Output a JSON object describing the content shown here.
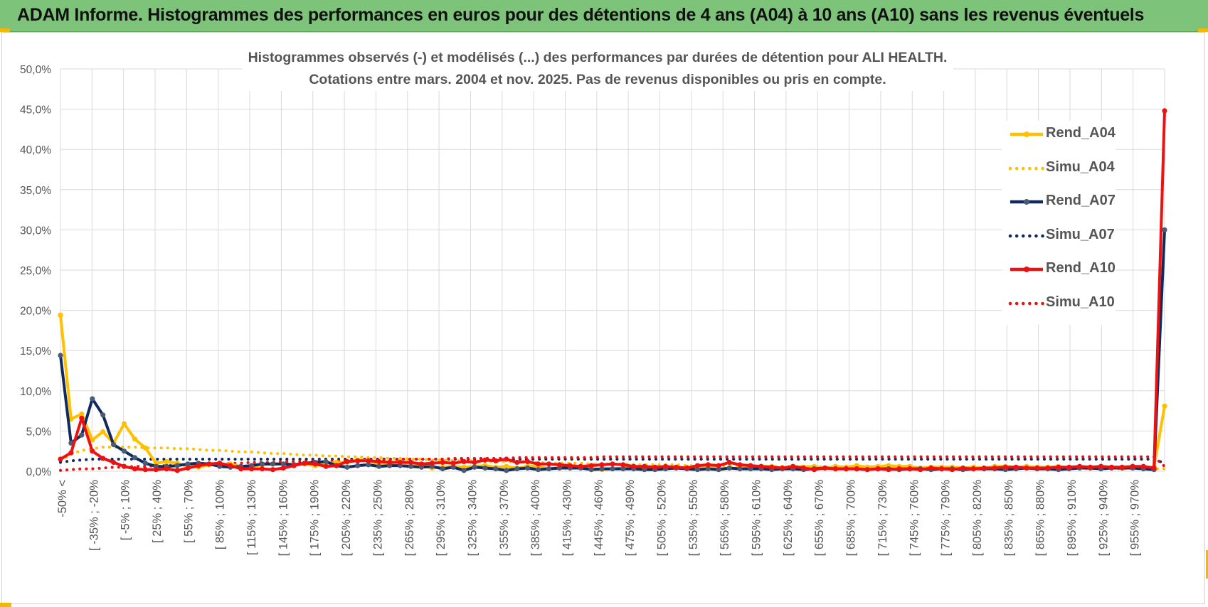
{
  "banner": {
    "title": "ADAM Informe. Histogrammes des performances en euros pour des détentions de 4 ans (A04) à 10 ans (A10) sans les revenus éventuels"
  },
  "colors": {
    "banner_bg": "#7dc47a",
    "corner_accent": "#f5b800",
    "A04": "#ffc000",
    "A07": "#0f2a5e",
    "A07_marker": "#4a5b76",
    "A10": "#ee1111",
    "grid": "#d9d9d9",
    "text": "#555555"
  },
  "chart_data": {
    "type": "line",
    "title": [
      "Histogrammes observés (-) et modélisés (...) des performances par durées de détention pour ALI HEALTH.",
      "Cotations entre mars. 2004  et nov. 2025.  Pas de revenus disponibles ou pris en compte."
    ],
    "y_ticks": [
      "0,0%",
      "5,0%",
      "10,0%",
      "15,0%",
      "20,0%",
      "25,0%",
      "30,0%",
      "35,0%",
      "40,0%",
      "45,0%",
      "50,0%"
    ],
    "ylim": [
      0,
      50
    ],
    "grid": true,
    "legend_position": "right",
    "category_count": 35,
    "category_labels": [
      "-50% <",
      "[ -35% ; -20%",
      "[ -5% ; 10%",
      "[ 25% ; 40%",
      "[ 55% ; 70%",
      "[ 85% ; 100%",
      "[ 115% ; 130%",
      "[ 145% ; 160%",
      "[ 175% ; 190%",
      "[ 205% ; 220%",
      "[ 235% ; 250%",
      "[ 265% ; 280%",
      "[ 295% ; 310%",
      "[ 325% ; 340%",
      "[ 355% ; 370%",
      "[ 385% ; 400%",
      "[ 415% ; 430%",
      "[ 445% ; 460%",
      "[ 475% ; 490%",
      "[ 505% ; 520%",
      "[ 535% ; 550%",
      "[ 565% ; 580%",
      "[ 595% ; 610%",
      "[ 625% ; 640%",
      "[ 655% ; 670%",
      "[ 685% ; 700%",
      "[ 715% ; 730%",
      "[ 745% ; 760%",
      "[ 775% ; 790%",
      "[ 805% ; 820%",
      "[ 835% ; 850%",
      "[ 865% ; 880%",
      "[ 895% ; 910%",
      "[ 925% ; 940%",
      "[ 955% ; 970%"
    ],
    "series": [
      {
        "name": "Rend_A04",
        "style": "solid",
        "color": "#ffc000",
        "markers": true,
        "values": [
          19.4,
          6.5,
          7.1,
          3.9,
          4.9,
          3.5,
          5.9,
          4.0,
          2.9,
          1.0,
          1.2,
          1.0,
          0.6,
          0.5,
          0.8,
          0.8,
          0.9,
          0.6,
          0.6,
          0.8,
          0.9,
          0.9,
          0.8,
          0.9,
          0.7,
          0.9,
          1.1,
          1.1,
          1.4,
          1.3,
          0.9,
          1.0,
          1.2,
          0.8,
          0.7,
          0.4,
          0.5,
          0.6,
          0.5,
          0.6,
          0.7,
          0.5,
          0.6,
          0.4,
          0.6,
          0.6,
          0.3,
          0.4,
          0.6,
          0.4,
          0.3,
          0.2,
          0.3,
          0.4,
          0.5,
          0.3,
          0.3,
          0.4,
          0.4,
          0.5,
          0.5,
          0.5,
          0.3,
          0.4,
          0.3,
          0.5,
          0.6,
          0.6,
          0.4,
          0.6,
          0.5,
          0.6,
          0.4,
          0.6,
          0.5,
          0.7,
          0.5,
          0.6,
          0.7,
          0.6,
          0.6,
          0.4,
          0.5,
          0.5,
          0.5,
          0.4,
          0.5,
          0.4,
          0.6,
          0.6,
          0.5,
          0.6,
          0.5,
          0.5,
          0.6,
          0.4,
          0.5,
          0.5,
          0.6,
          0.5,
          0.5,
          0.6,
          0.5,
          0.5,
          8.1
        ]
      },
      {
        "name": "Simu_A04",
        "style": "dotted",
        "color": "#ffc000",
        "markers": false,
        "values": [
          1.3,
          2.1,
          2.6,
          2.8,
          3.0,
          3.0,
          3.0,
          3.0,
          2.9,
          2.9,
          2.9,
          2.8,
          2.8,
          2.7,
          2.6,
          2.6,
          2.5,
          2.4,
          2.4,
          2.3,
          2.2,
          2.2,
          2.1,
          2.0,
          2.0,
          1.9,
          1.9,
          1.8,
          1.8,
          1.7,
          1.7,
          1.6,
          1.6,
          1.5,
          1.5,
          1.4,
          1.4,
          1.3,
          1.3,
          1.3,
          1.2,
          1.2,
          1.2,
          1.1,
          1.1,
          1.1,
          1.0,
          1.0,
          1.0,
          1.0,
          0.9,
          0.9,
          0.9,
          0.9,
          0.8,
          0.8,
          0.8,
          0.8,
          0.8,
          0.7,
          0.7,
          0.7,
          0.7,
          0.7,
          0.7,
          0.6,
          0.6,
          0.6,
          0.6,
          0.6,
          0.6,
          0.6,
          0.5,
          0.5,
          0.5,
          0.5,
          0.5,
          0.5,
          0.5,
          0.5,
          0.5,
          0.4,
          0.4,
          0.4,
          0.4,
          0.4,
          0.4,
          0.4,
          0.4,
          0.4,
          0.4,
          0.4,
          0.4,
          0.3,
          0.3,
          0.3,
          0.3,
          0.3,
          0.3,
          0.3,
          0.3,
          0.3,
          0.3,
          0.3,
          0.3
        ]
      },
      {
        "name": "Rend_A07",
        "style": "solid",
        "color": "#0f2a5e",
        "markers": true,
        "values": [
          14.4,
          3.5,
          4.5,
          9.0,
          7.0,
          3.3,
          2.5,
          1.7,
          1.0,
          0.6,
          0.6,
          0.7,
          0.9,
          1.0,
          0.9,
          0.6,
          0.5,
          0.6,
          0.7,
          0.9,
          0.9,
          0.9,
          0.8,
          1.0,
          1.1,
          1.2,
          0.7,
          0.5,
          0.7,
          0.8,
          0.6,
          0.7,
          0.7,
          0.6,
          0.5,
          0.6,
          0.3,
          0.5,
          0.1,
          0.5,
          0.4,
          0.3,
          0.1,
          0.3,
          0.4,
          0.2,
          0.3,
          0.4,
          0.4,
          0.4,
          0.2,
          0.3,
          0.3,
          0.3,
          0.3,
          0.2,
          0.2,
          0.3,
          0.4,
          0.3,
          0.2,
          0.3,
          0.2,
          0.4,
          0.3,
          0.3,
          0.3,
          0.2,
          0.3,
          0.3,
          0.2,
          0.3,
          0.4,
          0.3,
          0.3,
          0.3,
          0.2,
          0.3,
          0.3,
          0.2,
          0.3,
          0.3,
          0.2,
          0.3,
          0.3,
          0.2,
          0.3,
          0.3,
          0.3,
          0.2,
          0.3,
          0.4,
          0.3,
          0.3,
          0.2,
          0.3,
          0.4,
          0.4,
          0.3,
          0.4,
          0.4,
          0.4,
          0.3,
          0.2,
          30.0
        ]
      },
      {
        "name": "Simu_A07",
        "style": "dotted",
        "color": "#0f2a5e",
        "markers": false,
        "values": [
          1.1,
          1.3,
          1.4,
          1.5,
          1.5,
          1.5,
          1.5,
          1.5,
          1.5,
          1.5,
          1.5,
          1.5,
          1.5,
          1.5,
          1.5,
          1.5,
          1.5,
          1.5,
          1.5,
          1.5,
          1.5,
          1.5,
          1.5,
          1.5,
          1.5,
          1.5,
          1.5,
          1.5,
          1.5,
          1.5,
          1.5,
          1.5,
          1.5,
          1.5,
          1.5,
          1.5,
          1.5,
          1.5,
          1.5,
          1.5,
          1.5,
          1.5,
          1.5,
          1.5,
          1.5,
          1.5,
          1.5,
          1.5,
          1.5,
          1.5,
          1.5,
          1.5,
          1.5,
          1.5,
          1.5,
          1.5,
          1.5,
          1.5,
          1.5,
          1.5,
          1.5,
          1.5,
          1.5,
          1.5,
          1.5,
          1.5,
          1.5,
          1.5,
          1.5,
          1.5,
          1.5,
          1.5,
          1.5,
          1.5,
          1.5,
          1.5,
          1.5,
          1.5,
          1.5,
          1.5,
          1.5,
          1.5,
          1.5,
          1.5,
          1.5,
          1.5,
          1.5,
          1.5,
          1.5,
          1.5,
          1.5,
          1.5,
          1.5,
          1.5,
          1.5,
          1.5,
          1.5,
          1.5,
          1.5,
          1.5,
          1.5,
          1.5,
          1.5,
          1.5,
          1.0
        ]
      },
      {
        "name": "Rend_A10",
        "style": "solid",
        "color": "#ee1111",
        "markers": true,
        "values": [
          1.5,
          2.3,
          6.6,
          2.5,
          1.6,
          1.1,
          0.6,
          0.3,
          0.2,
          0.2,
          0.3,
          0.1,
          0.4,
          0.7,
          0.9,
          1.0,
          0.7,
          0.3,
          0.3,
          0.3,
          0.2,
          0.4,
          0.7,
          1.0,
          0.9,
          0.6,
          0.7,
          1.2,
          1.3,
          1.3,
          1.2,
          1.1,
          1.1,
          1.1,
          0.9,
          1.0,
          1.1,
          1.0,
          1.2,
          1.1,
          1.4,
          1.3,
          1.5,
          1.1,
          1.2,
          0.9,
          0.9,
          0.8,
          0.7,
          0.6,
          0.7,
          0.8,
          0.9,
          0.8,
          0.6,
          0.6,
          0.5,
          0.6,
          0.5,
          0.4,
          0.7,
          0.8,
          0.7,
          1.1,
          0.8,
          0.7,
          0.6,
          0.5,
          0.4,
          0.6,
          0.4,
          0.2,
          0.4,
          0.3,
          0.3,
          0.3,
          0.2,
          0.3,
          0.2,
          0.3,
          0.3,
          0.2,
          0.4,
          0.3,
          0.2,
          0.4,
          0.3,
          0.4,
          0.4,
          0.5,
          0.5,
          0.4,
          0.4,
          0.4,
          0.5,
          0.5,
          0.6,
          0.5,
          0.6,
          0.5,
          0.5,
          0.6,
          0.6,
          0.4,
          44.8
        ]
      },
      {
        "name": "Simu_A10",
        "style": "dotted",
        "color": "#ee1111",
        "markers": false,
        "values": [
          0.1,
          0.2,
          0.3,
          0.3,
          0.4,
          0.5,
          0.5,
          0.6,
          0.6,
          0.7,
          0.7,
          0.8,
          0.8,
          0.9,
          0.9,
          0.9,
          1.0,
          1.0,
          1.1,
          1.1,
          1.1,
          1.2,
          1.2,
          1.2,
          1.3,
          1.3,
          1.3,
          1.3,
          1.4,
          1.4,
          1.4,
          1.4,
          1.5,
          1.5,
          1.5,
          1.5,
          1.5,
          1.6,
          1.6,
          1.6,
          1.6,
          1.6,
          1.6,
          1.7,
          1.7,
          1.7,
          1.7,
          1.7,
          1.7,
          1.7,
          1.7,
          1.8,
          1.8,
          1.8,
          1.8,
          1.8,
          1.8,
          1.8,
          1.8,
          1.8,
          1.8,
          1.8,
          1.8,
          1.8,
          1.8,
          1.8,
          1.8,
          1.8,
          1.8,
          1.8,
          1.8,
          1.8,
          1.8,
          1.8,
          1.8,
          1.8,
          1.8,
          1.8,
          1.8,
          1.8,
          1.8,
          1.8,
          1.8,
          1.8,
          1.8,
          1.8,
          1.8,
          1.8,
          1.8,
          1.8,
          1.8,
          1.8,
          1.8,
          1.8,
          1.8,
          1.8,
          1.8,
          1.8,
          1.8,
          1.8,
          1.8,
          1.8,
          1.8,
          1.8,
          0.6
        ]
      }
    ]
  }
}
